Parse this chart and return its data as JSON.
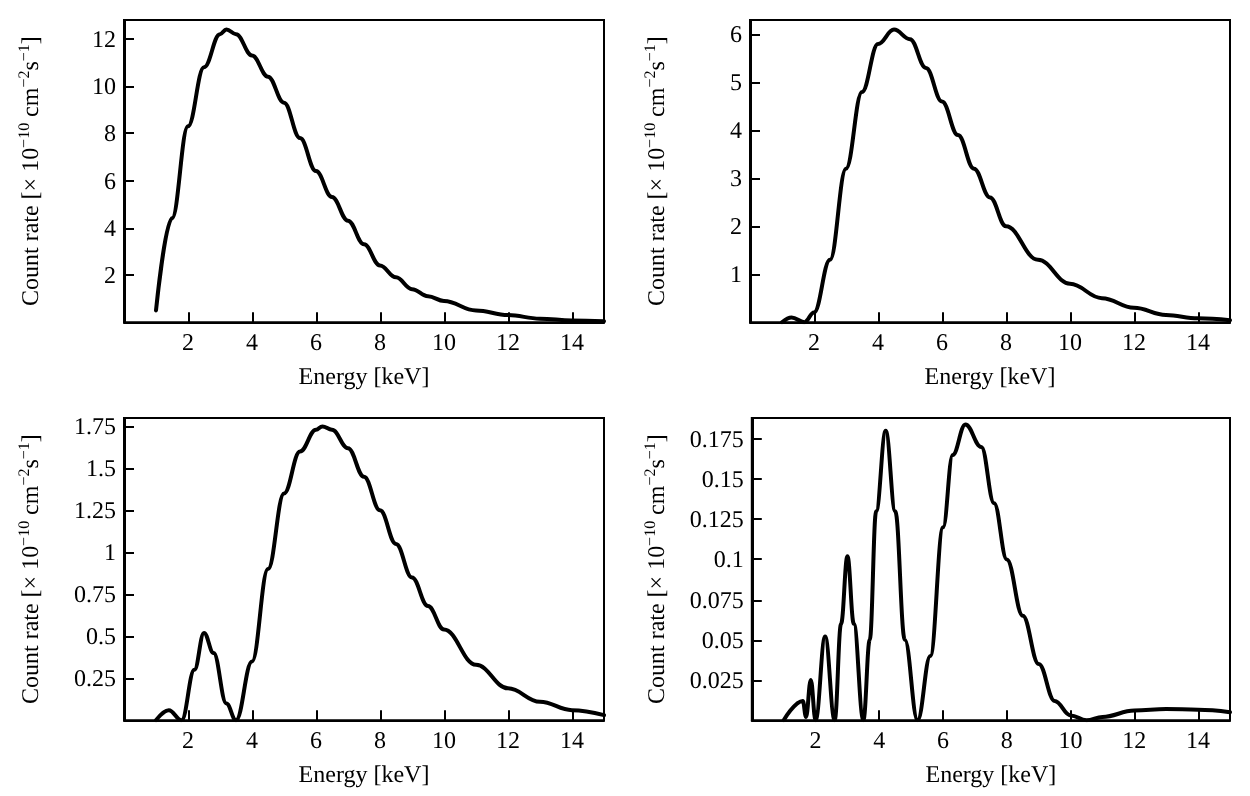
{
  "chart_data": [
    {
      "type": "line",
      "xlabel": "Energy [keV]",
      "ylabel": "Count rate [× 10$^{−10}$ cm$^{−2}$s$^{−1}$]",
      "xlim": [
        0,
        15
      ],
      "xticks": [
        2,
        4,
        6,
        8,
        10,
        12,
        14
      ],
      "ylim": [
        0,
        12.8
      ],
      "yticks": [
        2,
        4,
        6,
        8,
        10,
        12
      ],
      "marker": "none",
      "color": "#000000",
      "x": [
        1,
        1.5,
        2,
        2.5,
        3,
        3.2,
        3.5,
        4,
        4.5,
        5,
        5.5,
        6,
        6.5,
        7,
        7.5,
        8,
        8.5,
        9,
        9.5,
        10,
        11,
        12,
        13,
        14,
        15
      ],
      "values": [
        0.5,
        4.4,
        8.3,
        10.8,
        12.2,
        12.4,
        12.2,
        11.3,
        10.4,
        9.3,
        7.8,
        6.4,
        5.3,
        4.3,
        3.3,
        2.4,
        1.9,
        1.4,
        1.1,
        0.9,
        0.5,
        0.3,
        0.15,
        0.07,
        0.04
      ]
    },
    {
      "type": "line",
      "xlabel": "Energy [keV]",
      "ylabel": "Count rate [× 10$^{−10}$ cm$^{−2}$s$^{−1}$]",
      "xlim": [
        0,
        15
      ],
      "xticks": [
        2,
        4,
        6,
        8,
        10,
        12,
        14
      ],
      "ylim": [
        0,
        6.3
      ],
      "yticks": [
        1,
        2,
        3,
        4,
        5,
        6
      ],
      "marker": "none",
      "color": "#000000",
      "x": [
        1,
        1.3,
        1.7,
        2,
        2.5,
        3,
        3.5,
        4,
        4.5,
        5,
        5.5,
        6,
        6.5,
        7,
        7.5,
        8,
        9,
        10,
        11,
        12,
        13,
        14,
        15
      ],
      "values": [
        0,
        0.1,
        0,
        0.2,
        1.3,
        3.2,
        4.8,
        5.8,
        6.1,
        5.9,
        5.3,
        4.6,
        3.9,
        3.2,
        2.6,
        2.0,
        1.3,
        0.8,
        0.5,
        0.3,
        0.15,
        0.08,
        0.04
      ]
    },
    {
      "type": "line",
      "xlabel": "Energy [keV]",
      "ylabel": "Count rate [× 10$^{−10}$ cm$^{−2}$s$^{−1}$]",
      "xlim": [
        0,
        15
      ],
      "xticks": [
        2,
        4,
        6,
        8,
        10,
        12,
        14
      ],
      "ylim": [
        0,
        1.8
      ],
      "yticks": [
        0.25,
        0.5,
        0.75,
        1,
        1.25,
        1.5,
        1.75
      ],
      "marker": "none",
      "color": "#000000",
      "x": [
        1,
        1.4,
        1.8,
        2.2,
        2.5,
        2.8,
        3.2,
        3.5,
        4,
        4.5,
        5,
        5.5,
        6,
        6.2,
        6.5,
        7,
        7.5,
        8,
        8.5,
        9,
        9.5,
        10,
        11,
        12,
        13,
        14,
        15
      ],
      "values": [
        0,
        0.06,
        0,
        0.3,
        0.52,
        0.4,
        0.1,
        0,
        0.35,
        0.9,
        1.35,
        1.6,
        1.73,
        1.75,
        1.73,
        1.62,
        1.45,
        1.25,
        1.05,
        0.85,
        0.68,
        0.54,
        0.33,
        0.19,
        0.11,
        0.06,
        0.03
      ]
    },
    {
      "type": "line",
      "xlabel": "Energy [keV]",
      "ylabel": "Count rate [× 10$^{−10}$ cm$^{−2}$s$^{−1}$]",
      "xlim": [
        0,
        15
      ],
      "xticks": [
        2,
        4,
        6,
        8,
        10,
        12,
        14
      ],
      "ylim": [
        0,
        0.188
      ],
      "yticks": [
        0.025,
        0.05,
        0.075,
        0.1,
        0.125,
        0.15,
        0.175
      ],
      "marker": "none",
      "color": "#000000",
      "x": [
        1,
        1.6,
        1.7,
        1.85,
        2,
        2.3,
        2.6,
        2.8,
        3,
        3.2,
        3.5,
        3.7,
        3.9,
        4.2,
        4.5,
        4.8,
        5.2,
        5.6,
        6,
        6.3,
        6.7,
        7.2,
        7.6,
        8,
        8.5,
        9,
        9.5,
        10,
        10.5,
        11,
        12,
        13,
        14,
        15
      ],
      "values": [
        0,
        0.012,
        0.002,
        0.025,
        0,
        0.052,
        0,
        0.06,
        0.102,
        0.06,
        0,
        0.05,
        0.13,
        0.18,
        0.13,
        0.05,
        0,
        0.04,
        0.12,
        0.165,
        0.184,
        0.17,
        0.135,
        0.1,
        0.065,
        0.035,
        0.012,
        0.003,
        0,
        0.002,
        0.006,
        0.007,
        0.0065,
        0.005
      ]
    }
  ]
}
